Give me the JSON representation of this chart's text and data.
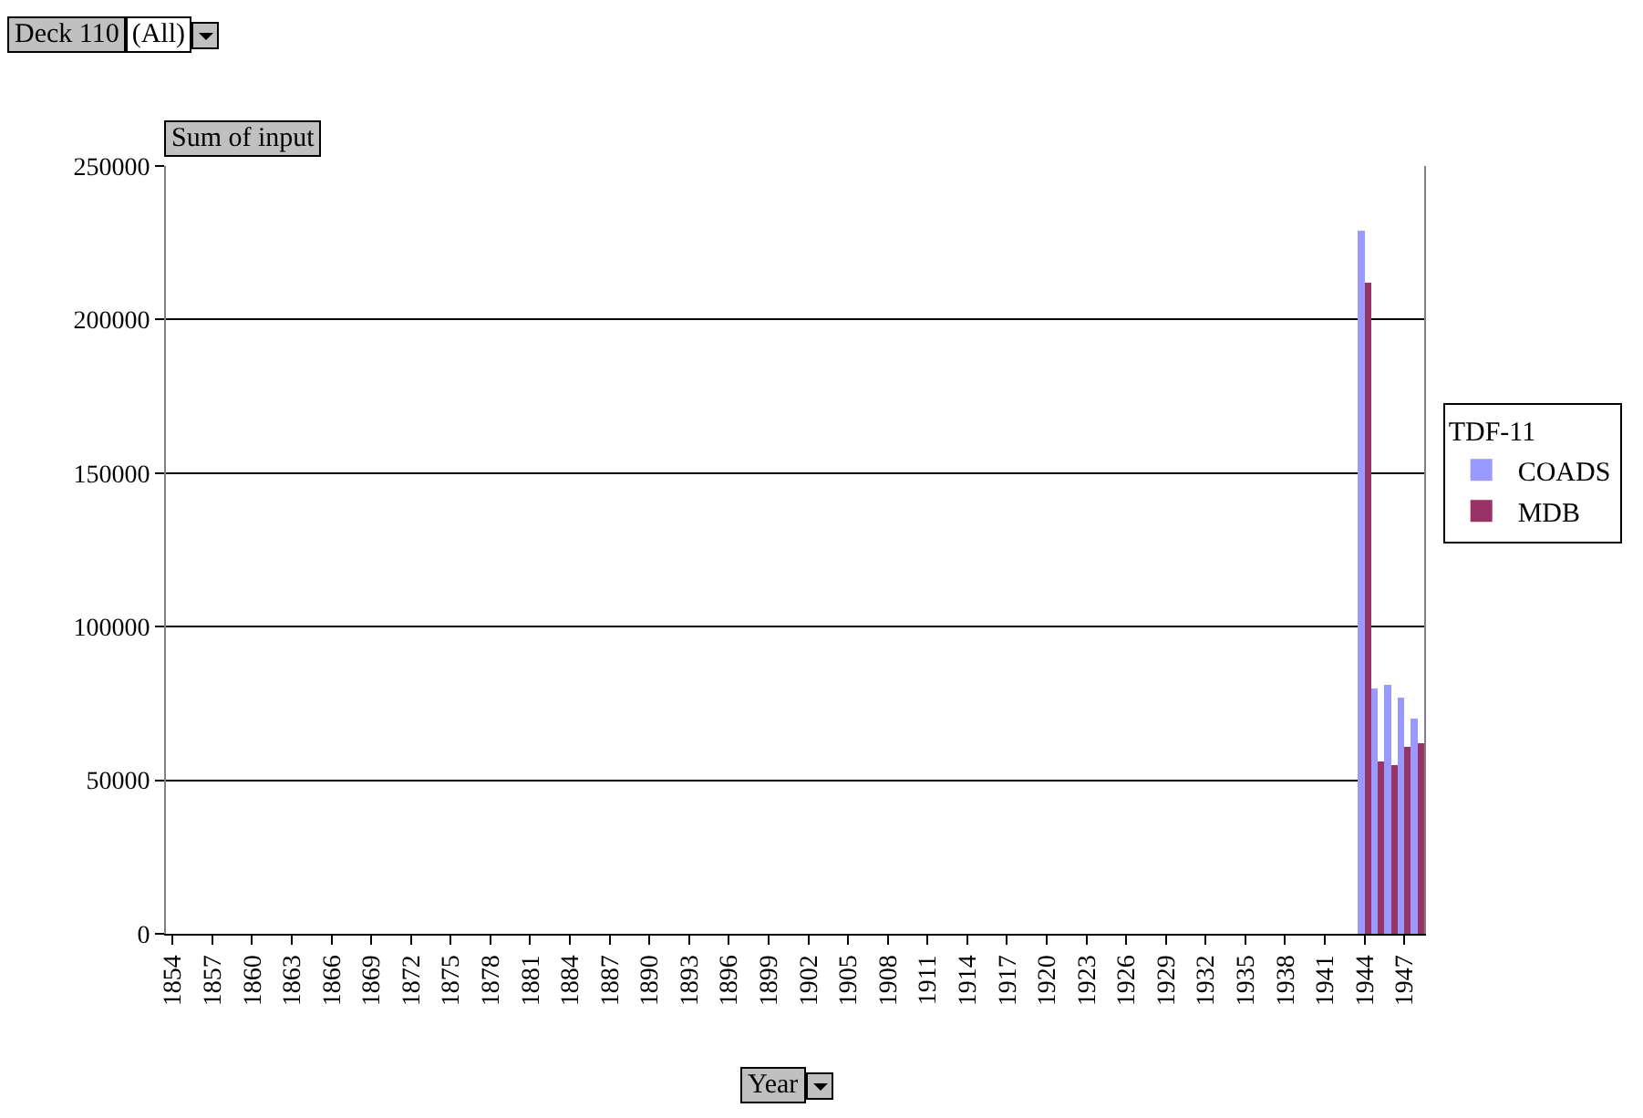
{
  "chart_data": {
    "type": "bar",
    "xlabel": "Year",
    "ylabel": "Sum of input",
    "legend_title": "TDF-11",
    "annotations": [
      "Deck 110",
      "(All)"
    ],
    "categories": [
      "1854",
      null,
      null,
      "1857",
      null,
      null,
      "1860",
      null,
      null,
      "1863",
      null,
      null,
      "1866",
      null,
      null,
      "1869",
      null,
      null,
      "1872",
      null,
      null,
      "1875",
      null,
      null,
      "1878",
      null,
      null,
      "1881",
      null,
      null,
      "1884",
      null,
      null,
      "1887",
      null,
      null,
      "1890",
      null,
      null,
      "1893",
      null,
      null,
      "1896",
      null,
      null,
      "1899",
      null,
      null,
      "1902",
      null,
      null,
      "1905",
      null,
      null,
      "1908",
      null,
      null,
      "1911",
      null,
      null,
      "1914",
      null,
      null,
      "1917",
      null,
      null,
      "1920",
      null,
      null,
      "1923",
      null,
      null,
      "1926",
      null,
      null,
      "1929",
      null,
      null,
      "1932",
      null,
      null,
      "1935",
      null,
      null,
      "1938",
      null,
      null,
      "1941",
      null,
      null,
      "1944",
      null,
      null,
      "1947",
      null
    ],
    "series": [
      {
        "name": "COADS",
        "color": "#9999ff",
        "values": [
          null,
          null,
          null,
          null,
          null,
          null,
          null,
          null,
          null,
          null,
          null,
          null,
          null,
          null,
          null,
          null,
          null,
          null,
          null,
          null,
          null,
          null,
          null,
          null,
          null,
          null,
          null,
          null,
          null,
          null,
          null,
          null,
          null,
          null,
          null,
          null,
          null,
          null,
          null,
          null,
          null,
          null,
          null,
          null,
          null,
          null,
          null,
          null,
          null,
          null,
          null,
          null,
          null,
          null,
          null,
          null,
          null,
          null,
          null,
          null,
          null,
          null,
          null,
          null,
          null,
          null,
          null,
          null,
          null,
          null,
          null,
          null,
          null,
          null,
          null,
          null,
          null,
          null,
          null,
          null,
          null,
          null,
          null,
          null,
          null,
          null,
          null,
          null,
          null,
          null,
          229000,
          80000,
          81000,
          77000,
          70000
        ]
      },
      {
        "name": "MDB",
        "color": "#993366",
        "values": [
          null,
          null,
          null,
          null,
          null,
          null,
          null,
          null,
          null,
          null,
          null,
          null,
          null,
          null,
          null,
          null,
          null,
          null,
          null,
          null,
          null,
          null,
          null,
          null,
          null,
          null,
          null,
          null,
          null,
          null,
          null,
          null,
          null,
          null,
          null,
          null,
          null,
          null,
          null,
          null,
          null,
          null,
          null,
          null,
          null,
          null,
          null,
          null,
          null,
          null,
          null,
          null,
          null,
          null,
          null,
          null,
          null,
          null,
          null,
          null,
          null,
          null,
          null,
          null,
          null,
          null,
          null,
          null,
          null,
          null,
          null,
          null,
          null,
          null,
          null,
          null,
          null,
          null,
          null,
          null,
          null,
          null,
          null,
          null,
          null,
          null,
          null,
          null,
          null,
          null,
          212000,
          56000,
          55000,
          61000,
          62000
        ]
      }
    ],
    "ylim": [
      0,
      250000
    ],
    "yticks": [
      0,
      50000,
      100000,
      150000,
      200000,
      250000
    ],
    "grid": "y",
    "legend": "right"
  }
}
